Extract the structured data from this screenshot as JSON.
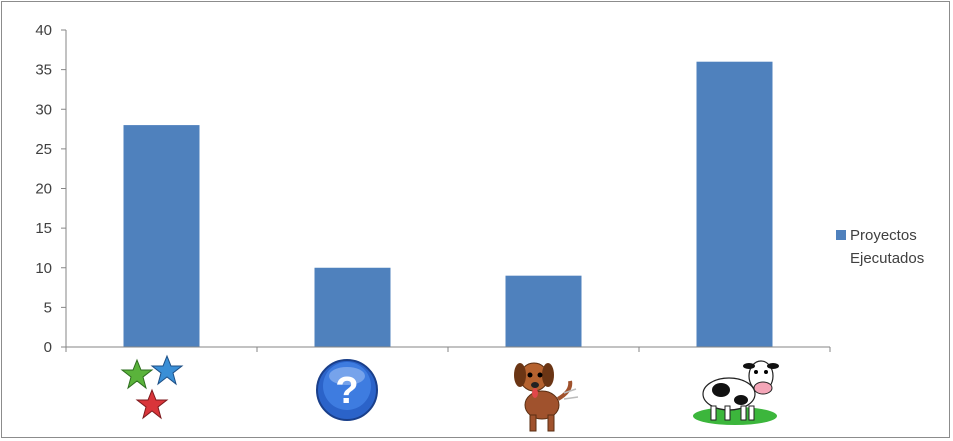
{
  "chart_data": {
    "type": "bar",
    "categories": [
      "stars-icon",
      "question-icon",
      "dog-icon",
      "cow-icon"
    ],
    "series": [
      {
        "name": "Proyectos Ejecutados",
        "values": [
          28,
          10,
          9,
          36
        ],
        "color": "#4f81bd"
      }
    ],
    "yticks": [
      "0",
      "5",
      "10",
      "15",
      "20",
      "25",
      "30",
      "35",
      "40"
    ],
    "ylim": [
      0,
      40
    ],
    "grid": false,
    "legend_position": "right"
  }
}
